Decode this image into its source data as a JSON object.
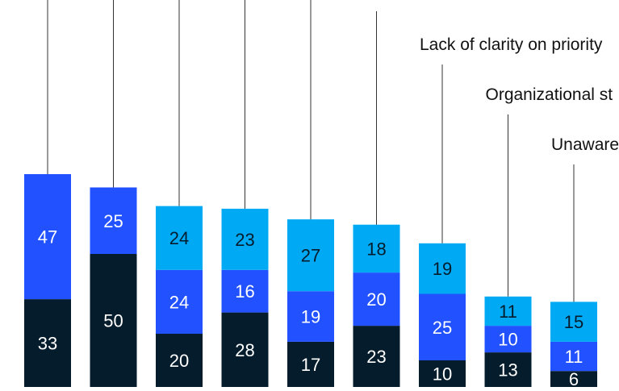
{
  "chart_data": {
    "type": "bar",
    "stacked": true,
    "categories": [
      "",
      "",
      "",
      "",
      "",
      "",
      "",
      "",
      ""
    ],
    "series": [
      {
        "values": [
          33,
          50,
          20,
          28,
          17,
          23,
          10,
          13,
          6
        ],
        "color": "#051c2c"
      },
      {
        "values": [
          47,
          25,
          24,
          16,
          19,
          20,
          25,
          10,
          11
        ],
        "color": "#2251ff"
      },
      {
        "values": [
          null,
          null,
          24,
          23,
          27,
          18,
          19,
          11,
          15
        ],
        "color": "#00a9f4"
      }
    ],
    "data_label_colors": [
      "#ffffff",
      "#ffffff",
      "#051c2c"
    ],
    "annotations": [
      {
        "text": "Lack of clarity on priority",
        "bar_index": 6
      },
      {
        "text": "Organizational st",
        "bar_index": 7
      },
      {
        "text": "Unaware",
        "bar_index": 8
      }
    ],
    "grid": false,
    "legend": "none"
  }
}
